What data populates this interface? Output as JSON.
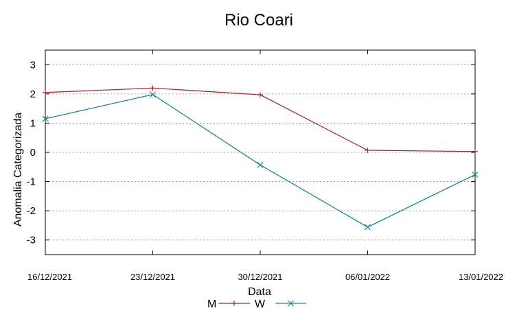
{
  "chart_data": {
    "type": "line",
    "title": "Rio Coari",
    "xlabel": "Data",
    "ylabel": "Anomalia Categorizada",
    "categories": [
      "16/12/2021",
      "23/12/2021",
      "30/12/2021",
      "06/01/2022",
      "13/01/2022"
    ],
    "ylim": [
      -3.5,
      3.5
    ],
    "yticks": [
      3,
      2,
      1,
      0,
      -1,
      -2,
      -3
    ],
    "grid": true,
    "legend_position": "bottom",
    "series": [
      {
        "name": "M",
        "values": [
          2.05,
          2.2,
          1.97,
          0.07,
          0.03
        ],
        "color": "#a52a2a",
        "marker": "+"
      },
      {
        "name": "W",
        "values": [
          1.15,
          1.98,
          -0.43,
          -2.56,
          -0.76
        ],
        "color": "#1a8a8a",
        "marker": "x"
      }
    ]
  }
}
